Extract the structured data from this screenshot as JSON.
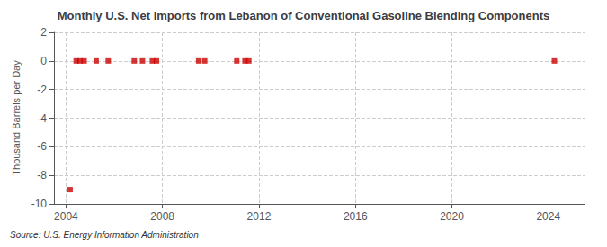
{
  "chart_data": {
    "type": "scatter",
    "title": "Monthly U.S. Net Imports from Lebanon of Conventional Gasoline Blending Components",
    "ylabel": "Thousand Barrels per Day",
    "source": "Source: U.S. Energy Information Administration",
    "x": [
      2004.17,
      2004.42,
      2004.58,
      2004.75,
      2005.25,
      2005.75,
      2006.83,
      2007.17,
      2007.58,
      2007.75,
      2009.5,
      2009.75,
      2011.08,
      2011.42,
      2011.58,
      2024.25
    ],
    "values": [
      -9.0,
      0.0,
      0.0,
      0.0,
      0.0,
      0.0,
      0.0,
      0.0,
      0.0,
      0.0,
      0.0,
      0.0,
      0.0,
      0.0,
      0.0,
      0.0
    ],
    "color": "#cc0000",
    "marker": "square",
    "xlim": [
      2003.5,
      2025.5
    ],
    "xticks": [
      2004,
      2008,
      2012,
      2016,
      2020,
      2024
    ],
    "ylim": [
      -10,
      2
    ],
    "yticks": [
      -10,
      -8,
      -6,
      -4,
      -2,
      0,
      2
    ],
    "grid": true
  }
}
